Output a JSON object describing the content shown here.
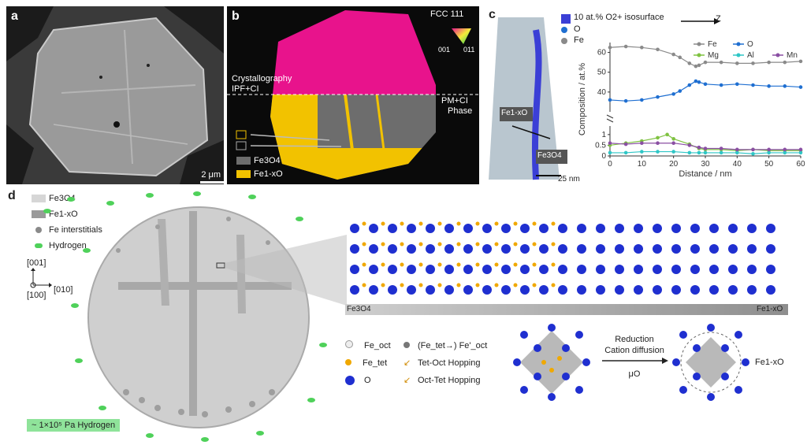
{
  "panels": {
    "a": {
      "letter": "a",
      "scale_bar": "2 μm"
    },
    "b": {
      "letter": "b",
      "ipf_label": "FCC 111",
      "ipf_corner_left": "001",
      "ipf_corner_right": "011",
      "left_note_line1": "Crystallography",
      "left_note_line2": "IPF+CI",
      "right_note_line1": "PM+CI",
      "right_note_line2": "Phase",
      "legend": [
        {
          "label": "Fe3O4",
          "color": "#6d6d6d"
        },
        {
          "label": "Fe1-xO",
          "color": "#f2c200"
        }
      ]
    },
    "c": {
      "letter": "c",
      "iso_label": "10 at.% O2+ isosurface",
      "legend_O": "O",
      "legend_Fe": "Fe",
      "arrow_label": "Z",
      "tip_label_top": "Fe1-xO",
      "tip_label_bottom": "Fe3O4",
      "scale_bar": "25 nm"
    },
    "d": {
      "letter": "d",
      "legend": [
        "Fe3O4",
        "Fe1-xO",
        "Fe interstitials",
        "Hydrogen"
      ],
      "axes": {
        "up": "[001]",
        "right": "[010]",
        "out": "[100]"
      },
      "pressure_label": "~ 1×10⁵ Pa Hydrogen",
      "bar_left": "Fe3O4",
      "bar_right": "Fe1-xO",
      "atom_legend": [
        "Fe_oct",
        "Fe_tet",
        "O",
        "(Fe_tet→) Fe'_oct",
        "Tet-Oct Hopping",
        "Oct-Tet Hopping"
      ],
      "reaction_line1": "Reduction",
      "reaction_line2": "Cation diffusion",
      "reaction_mu": "μO",
      "product_label": "Fe1-xO"
    }
  },
  "colors": {
    "magenta": "#e8138c",
    "yellow": "#f2c200",
    "fe_gray": "#8a8a8a",
    "o_blue": "#1f6fd1",
    "mg_green": "#7fc241",
    "al_cyan": "#2fc6c6",
    "mn_purple": "#8a4fa3",
    "hydrogen_green": "#4fd15a",
    "atom_blue": "#1f2fd0",
    "atom_orange": "#f0a800"
  },
  "chart_data": {
    "type": "line",
    "xlabel": "Distance / nm",
    "ylabel": "Composition / at.%",
    "xlim": [
      0,
      60
    ],
    "xticks": [
      0,
      10,
      20,
      30,
      40,
      50,
      60
    ],
    "upper_ylim": [
      30,
      65
    ],
    "upper_yticks": [
      40,
      50,
      60
    ],
    "lower_ylim": [
      0,
      1.4
    ],
    "lower_yticks": [
      0,
      0.5,
      1
    ],
    "grid": false,
    "legend_placement": "top-right",
    "series": [
      {
        "name": "Fe",
        "color": "#8a8a8a",
        "axis": "upper",
        "x": [
          0,
          5,
          10,
          15,
          20,
          22,
          25,
          27,
          28,
          30,
          35,
          40,
          45,
          50,
          55,
          60
        ],
        "y": [
          62.5,
          63,
          62.5,
          61.5,
          59,
          57.5,
          54.5,
          53,
          53.5,
          55,
          55,
          54.5,
          54.5,
          55,
          55,
          55.5
        ]
      },
      {
        "name": "O",
        "color": "#1f6fd1",
        "axis": "upper",
        "x": [
          0,
          5,
          10,
          15,
          20,
          22,
          25,
          27,
          28,
          30,
          35,
          40,
          45,
          50,
          55,
          60
        ],
        "y": [
          36,
          35.5,
          36,
          37.5,
          39,
          40.5,
          43.5,
          45.5,
          45,
          44,
          43.5,
          44,
          43.5,
          43,
          43,
          42.5
        ]
      },
      {
        "name": "Mg",
        "color": "#7fc241",
        "axis": "lower",
        "x": [
          0,
          5,
          10,
          15,
          18,
          20,
          25,
          28,
          30,
          35,
          40,
          45,
          50,
          55,
          60
        ],
        "y": [
          0.5,
          0.6,
          0.7,
          0.85,
          1.0,
          0.8,
          0.55,
          0.35,
          0.3,
          0.3,
          0.25,
          0.3,
          0.25,
          0.25,
          0.25
        ]
      },
      {
        "name": "Al",
        "color": "#2fc6c6",
        "axis": "lower",
        "x": [
          0,
          5,
          10,
          15,
          20,
          25,
          28,
          30,
          35,
          40,
          45,
          50,
          55,
          60
        ],
        "y": [
          0.15,
          0.15,
          0.2,
          0.2,
          0.2,
          0.15,
          0.15,
          0.15,
          0.15,
          0.15,
          0.1,
          0.15,
          0.15,
          0.15
        ]
      },
      {
        "name": "Mn",
        "color": "#8a4fa3",
        "axis": "lower",
        "x": [
          0,
          5,
          10,
          15,
          20,
          25,
          28,
          30,
          35,
          40,
          45,
          50,
          55,
          60
        ],
        "y": [
          0.6,
          0.55,
          0.6,
          0.6,
          0.6,
          0.5,
          0.4,
          0.35,
          0.35,
          0.3,
          0.3,
          0.3,
          0.3,
          0.3
        ]
      }
    ]
  }
}
